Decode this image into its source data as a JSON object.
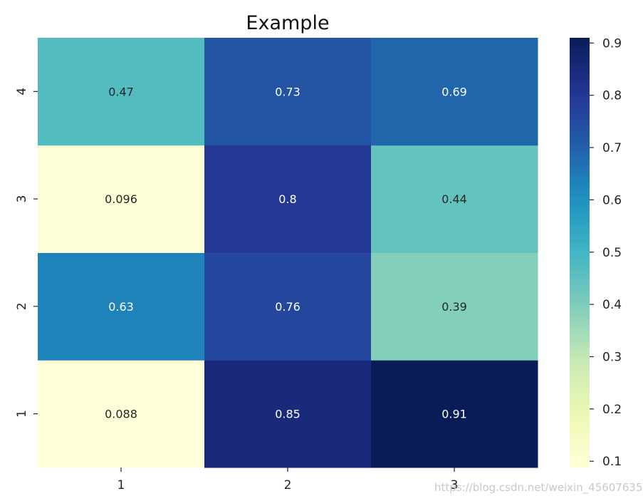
{
  "chart_data": {
    "type": "heatmap",
    "title": "Example",
    "x_categories": [
      "1",
      "2",
      "3"
    ],
    "y_categories": [
      "1",
      "2",
      "3",
      "4"
    ],
    "values": [
      [
        0.088,
        0.85,
        0.91
      ],
      [
        0.63,
        0.76,
        0.39
      ],
      [
        0.096,
        0.8,
        0.44
      ],
      [
        0.47,
        0.73,
        0.69
      ]
    ],
    "value_labels": [
      [
        "0.088",
        "0.85",
        "0.91"
      ],
      [
        "0.63",
        "0.76",
        "0.39"
      ],
      [
        "0.096",
        "0.8",
        "0.44"
      ],
      [
        "0.47",
        "0.73",
        "0.69"
      ]
    ],
    "colormap": "YlGnBu",
    "colorbar": {
      "range": [
        0.088,
        0.91
      ],
      "ticks": [
        0.1,
        0.2,
        0.3,
        0.4,
        0.5,
        0.6,
        0.7,
        0.8,
        0.9
      ],
      "tick_labels": [
        "0.1",
        "0.2",
        "0.3",
        "0.4",
        "0.5",
        "0.6",
        "0.7",
        "0.8",
        "0.9"
      ]
    },
    "grid": false
  },
  "watermark": "https://blog.csdn.net/weixin_45607635"
}
